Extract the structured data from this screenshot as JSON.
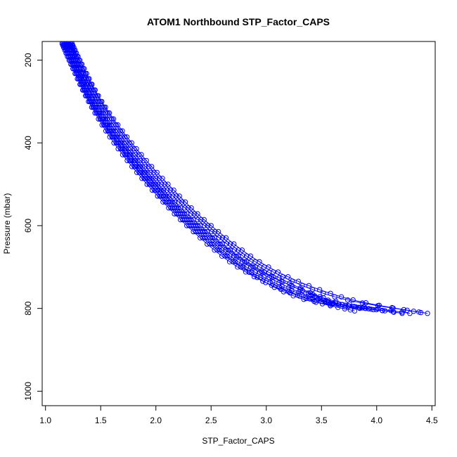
{
  "chart_data": {
    "type": "line",
    "title": "ATOM1 Northbound STP_Factor_CAPS",
    "xlabel": "STP_Factor_CAPS",
    "ylabel": "Pressure (mbar)",
    "xlim": [
      0.97,
      4.53
    ],
    "ylim": [
      1035,
      155
    ],
    "y_inverted": true,
    "xticks": [
      1.0,
      1.5,
      2.0,
      2.5,
      3.0,
      3.5,
      4.0,
      4.5
    ],
    "xtick_labels": [
      "1.0",
      "1.5",
      "2.0",
      "2.5",
      "3.0",
      "3.5",
      "4.0",
      "4.5"
    ],
    "yticks": [
      200,
      400,
      600,
      800,
      1000
    ],
    "ytick_labels": [
      "200",
      "400",
      "600",
      "800",
      "1000"
    ],
    "grid": false,
    "legend": "none",
    "series_color": "#0000ff",
    "marker": "open-circle",
    "series": [
      {
        "x": [
          1.18,
          1.26,
          1.42,
          1.66,
          1.97,
          2.34,
          2.82,
          3.42,
          4.23
        ],
        "y": [
          160,
          210,
          300,
          400,
          500,
          600,
          700,
          775,
          812
        ]
      },
      {
        "x": [
          1.21,
          1.29,
          1.46,
          1.71,
          2.02,
          2.4,
          2.9,
          3.52,
          4.3
        ],
        "y": [
          160,
          210,
          300,
          400,
          500,
          600,
          700,
          775,
          812
        ]
      },
      {
        "x": [
          1.23,
          1.32,
          1.5,
          1.76,
          2.08,
          2.47,
          2.98,
          3.62,
          4.46
        ],
        "y": [
          160,
          210,
          300,
          400,
          500,
          600,
          700,
          772,
          812
        ]
      },
      {
        "x": [
          1.15,
          1.23,
          1.39,
          1.62,
          1.92,
          2.28,
          2.74,
          3.3,
          3.95
        ],
        "y": [
          160,
          210,
          300,
          400,
          500,
          600,
          700,
          770,
          802
        ]
      },
      {
        "x": [
          1.19,
          1.27,
          1.43,
          1.68,
          1.99,
          2.36,
          2.86,
          3.47,
          4.05
        ],
        "y": [
          160,
          210,
          300,
          400,
          500,
          600,
          700,
          778,
          805
        ]
      },
      {
        "x": [
          1.22,
          1.3,
          1.48,
          1.73,
          2.05,
          2.44,
          2.94,
          3.56,
          3.9
        ],
        "y": [
          160,
          210,
          300,
          400,
          500,
          600,
          700,
          780,
          800
        ]
      },
      {
        "x": [
          1.17,
          1.25,
          1.41,
          1.65,
          1.95,
          2.32,
          2.79,
          3.36,
          3.8
        ],
        "y": [
          160,
          210,
          300,
          400,
          500,
          600,
          700,
          776,
          806
        ]
      },
      {
        "x": [
          1.2,
          1.28,
          1.45,
          1.69,
          2.0,
          2.38,
          2.88,
          3.44,
          3.6
        ],
        "y": [
          160,
          210,
          300,
          400,
          500,
          600,
          700,
          770,
          790
        ]
      },
      {
        "x": [
          1.24,
          1.33,
          1.51,
          1.78,
          2.11,
          2.5,
          3.02,
          3.68,
          4.4
        ],
        "y": [
          160,
          210,
          300,
          400,
          500,
          600,
          700,
          772,
          810
        ]
      },
      {
        "x": [
          1.16,
          1.24,
          1.4,
          1.64,
          1.94,
          2.3,
          2.77,
          3.34,
          4.15
        ],
        "y": [
          160,
          210,
          300,
          400,
          500,
          600,
          700,
          778,
          808
        ]
      }
    ]
  }
}
